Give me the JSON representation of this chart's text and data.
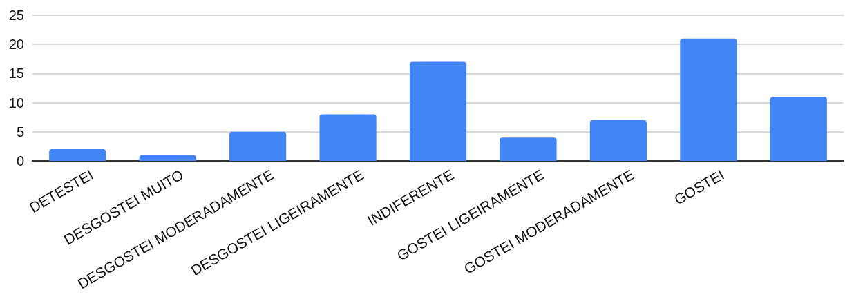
{
  "chart_data": {
    "type": "bar",
    "categories": [
      "DETESTEI",
      "DESGOSTEI MUITO",
      "DESGOSTEI MODERADAMENTE",
      "DESGOSTEI LIGEIRAMENTE",
      "INDIFERENTE",
      "GOSTEI LIGEIRAMENTE",
      "GOSTEI MODERADAMENTE",
      "GOSTEI",
      null
    ],
    "values": [
      2,
      1,
      5,
      8,
      17,
      4,
      7,
      21,
      11
    ],
    "color": "#4285f4",
    "ylim": [
      0,
      25
    ],
    "yticks": [
      0,
      5,
      10,
      15,
      20,
      25
    ],
    "grid": "y"
  }
}
